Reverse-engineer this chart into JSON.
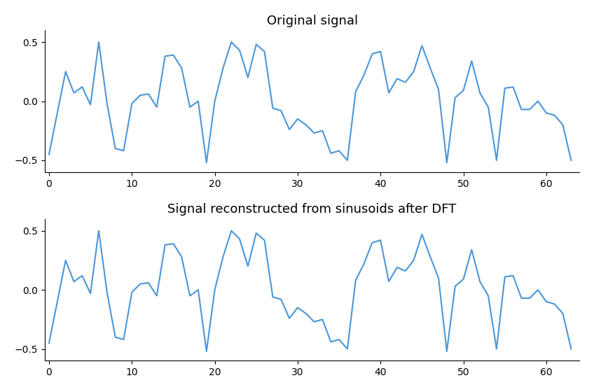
{
  "title1": "Original signal",
  "title2": "Signal reconstructed from sinusoids after DFT",
  "line_color": "#4C96D7",
  "line_width": 1.5,
  "ylim": [
    -0.6,
    0.6
  ],
  "xlim": [
    -0.5,
    64
  ],
  "yticks": [
    -0.5,
    0.0,
    0.5
  ],
  "xticks": [
    0,
    10,
    20,
    30,
    40,
    50,
    60
  ],
  "background_color": "#ffffff",
  "signal": [
    -0.45,
    -0.1,
    0.25,
    0.07,
    0.12,
    -0.03,
    0.5,
    -0.02,
    -0.4,
    -0.42,
    -0.02,
    0.05,
    0.06,
    -0.05,
    0.38,
    0.39,
    0.28,
    -0.05,
    0.0,
    -0.52,
    0.0,
    0.28,
    0.5,
    0.43,
    0.2,
    0.48,
    0.42,
    -0.06,
    -0.08,
    -0.24,
    -0.15,
    -0.2,
    -0.27,
    -0.25,
    -0.44,
    -0.42,
    -0.5,
    0.08,
    0.22,
    0.4,
    0.42,
    0.07,
    0.19,
    0.16,
    0.25,
    0.47,
    0.28,
    0.1,
    -0.52,
    0.03,
    0.09,
    0.34,
    0.07,
    -0.05,
    -0.5,
    0.11,
    0.12,
    -0.07,
    -0.07,
    0.0,
    -0.1,
    -0.12,
    -0.2,
    -0.5
  ],
  "N": 64
}
